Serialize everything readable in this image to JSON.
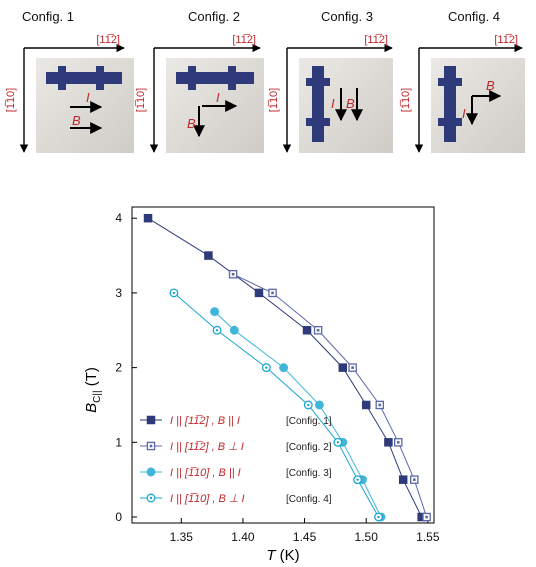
{
  "configs": [
    {
      "title": "Config. 1",
      "h_label": "[11̅2]",
      "v_label": "[1̅10]",
      "I_label": "I",
      "B_label": "B"
    },
    {
      "title": "Config. 2",
      "h_label": "[11̅2]",
      "v_label": "[1̅10]",
      "I_label": "I",
      "B_label": "B"
    },
    {
      "title": "Config. 3",
      "h_label": "[11̅2]",
      "v_label": "[1̅10]",
      "I_label": "I",
      "B_label": "B"
    },
    {
      "title": "Config. 4",
      "h_label": "[11̅2]",
      "v_label": "[1̅10]",
      "I_label": "I",
      "B_label": "B"
    }
  ],
  "colors": {
    "dark": "#2e3a7a",
    "mid": "#5b68a8",
    "light": "#3fb6d8",
    "cyan": "#1aa6cf",
    "annot": "#c0282d",
    "device": "#2e3a7a",
    "substrate": "#d9d6d0"
  },
  "chart_data": {
    "type": "line",
    "xlabel": "T (K)",
    "ylabel": "B_C||(T)",
    "ylabel_main": "B",
    "ylabel_sub": "C||",
    "ylabel_unit": " (T)",
    "xlabel_var": "T",
    "xlabel_unit": " (K)",
    "xlim": [
      1.31,
      1.555
    ],
    "ylim": [
      -0.08,
      4.15
    ],
    "xticks": [
      "1.35",
      "1.40",
      "1.45",
      "1.50",
      "1.55"
    ],
    "yticks": [
      "0",
      "1",
      "2",
      "3",
      "4"
    ],
    "xtick_values": [
      1.35,
      1.4,
      1.45,
      1.5,
      1.55
    ],
    "ytick_values": [
      0,
      1,
      2,
      3,
      4
    ],
    "legend_position": "bottom-left",
    "series": [
      {
        "name": "I || [11̅2], B || I",
        "legend_a": "I  ||  [11̅2] , B || I",
        "legend_b": "[Config. 1]",
        "marker": "square-filled",
        "color": "#2e3a7a",
        "x": [
          1.323,
          1.372,
          1.413,
          1.452,
          1.481,
          1.5,
          1.518,
          1.53,
          1.545
        ],
        "y": [
          4.0,
          3.5,
          3.0,
          2.5,
          2.0,
          1.5,
          1.0,
          0.5,
          0.0
        ]
      },
      {
        "name": "I || [11̅2], B ⊥ I",
        "legend_a": "I  ||  [11̅2] , B ⊥ I",
        "legend_b": "[Config. 2]",
        "marker": "square-open",
        "color": "#5b68a8",
        "x": [
          1.392,
          1.424,
          1.461,
          1.489,
          1.511,
          1.526,
          1.539,
          1.549
        ],
        "y": [
          3.25,
          3.0,
          2.5,
          2.0,
          1.5,
          1.0,
          0.5,
          0.0
        ]
      },
      {
        "name": "I || [1̅10], B || I",
        "legend_a": "I  ||  [1̅10] , B || I",
        "legend_b": "[Config. 3]",
        "marker": "circle-filled",
        "color": "#3fb6d8",
        "x": [
          1.377,
          1.393,
          1.433,
          1.462,
          1.481,
          1.497,
          1.512
        ],
        "y": [
          2.75,
          2.5,
          2.0,
          1.5,
          1.0,
          0.5,
          0.0
        ]
      },
      {
        "name": "I || [1̅10], B ⊥ I",
        "legend_a": "I  ||  [1̅10] , B ⊥ I",
        "legend_b": "[Config. 4]",
        "marker": "circle-open",
        "color": "#1aa6cf",
        "x": [
          1.344,
          1.379,
          1.419,
          1.453,
          1.477,
          1.493,
          1.51
        ],
        "y": [
          3.0,
          2.5,
          2.0,
          1.5,
          1.0,
          0.5,
          0.0
        ]
      }
    ]
  }
}
